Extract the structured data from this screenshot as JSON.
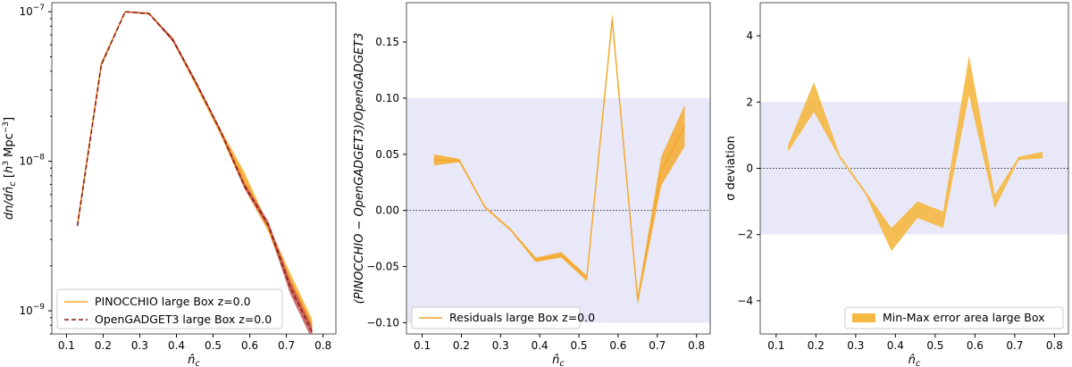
{
  "chart_data": [
    {
      "type": "line",
      "xlabel": "n̂_c",
      "ylabel": "dn/dn̂_c [h³ Mpc⁻³]",
      "yscale": "log",
      "xlim": [
        0.06,
        0.835
      ],
      "ylim": [
        7e-10,
        1.15e-07
      ],
      "xticks": [
        0.1,
        0.2,
        0.3,
        0.4,
        0.5,
        0.6,
        0.7,
        0.8
      ],
      "xticklabels": [
        "0.1",
        "0.2",
        "0.3",
        "0.4",
        "0.5",
        "0.6",
        "0.7",
        "0.8"
      ],
      "yticks": [
        1e-09,
        1e-08,
        1e-07
      ],
      "legend_loc": "lower left",
      "grid": false,
      "x": [
        0.13,
        0.195,
        0.26,
        0.325,
        0.39,
        0.455,
        0.52,
        0.585,
        0.65,
        0.71,
        0.77
      ],
      "series": [
        {
          "name": "PINOCCHIO large Box z=0.0",
          "color": "#f5a623",
          "style": "solid",
          "values": [
            3.8e-09,
            4.5e-08,
            1e-07,
            9.8e-08,
            6.5e-08,
            3.3e-08,
            1.6e-08,
            7.5e-09,
            3.6e-09,
            1.6e-09,
            8e-10
          ],
          "band_low": [
            3.7e-09,
            4.4e-08,
            9.9e-08,
            9.7e-08,
            6.3e-08,
            3.1e-08,
            1.5e-08,
            6.6e-09,
            3.4e-09,
            1.4e-09,
            7.2e-10
          ],
          "band_high": [
            3.9e-09,
            4.6e-08,
            1.01e-07,
            9.9e-08,
            6.7e-08,
            3.4e-08,
            1.65e-08,
            8.5e-09,
            3.8e-09,
            1.8e-09,
            8.8e-10
          ],
          "band_color": "#f5a623"
        },
        {
          "name": "OpenGADGET3 large Box z=0.0",
          "color": "#8b1a1a",
          "style": "dashed",
          "values": [
            3.7e-09,
            4.4e-08,
            1e-07,
            9.7e-08,
            6.5e-08,
            3.3e-08,
            1.6e-08,
            6.9e-09,
            3.8e-09,
            1.45e-09,
            7.2e-10
          ],
          "band_low": [
            3.6e-09,
            4.3e-08,
            9.9e-08,
            9.6e-08,
            6.3e-08,
            3.2e-08,
            1.55e-08,
            6.6e-09,
            3.6e-09,
            1.3e-09,
            6.4e-10
          ],
          "band_high": [
            3.8e-09,
            4.5e-08,
            1.01e-07,
            9.8e-08,
            6.7e-08,
            3.4e-08,
            1.65e-08,
            7.2e-09,
            4e-09,
            1.6e-09,
            7.9e-10
          ],
          "band_color": "#c0504d"
        }
      ]
    },
    {
      "type": "area",
      "xlabel": "n̂_c",
      "ylabel": "(PINOCCHIO − OpenGADGET3)/OpenGADGET3",
      "xlim": [
        0.06,
        0.835
      ],
      "ylim": [
        -0.11,
        0.185
      ],
      "xticks": [
        0.1,
        0.2,
        0.3,
        0.4,
        0.5,
        0.6,
        0.7,
        0.8
      ],
      "xticklabels": [
        "0.1",
        "0.2",
        "0.3",
        "0.4",
        "0.5",
        "0.6",
        "0.7",
        "0.8"
      ],
      "yticks": [
        -0.1,
        -0.05,
        0.0,
        0.05,
        0.1,
        0.15
      ],
      "yticklabels": [
        "−0.10",
        "−0.05",
        "0.00",
        "0.05",
        "0.10",
        "0.15"
      ],
      "shaded_region": [
        -0.1,
        0.1
      ],
      "shaded_color": "#e8e8f8",
      "reference_line": 0,
      "legend_loc": "lower left",
      "grid": false,
      "x": [
        0.13,
        0.195,
        0.26,
        0.325,
        0.39,
        0.455,
        0.52,
        0.585,
        0.65,
        0.71,
        0.77
      ],
      "series": [
        {
          "name": "Residuals large Box z=0.0",
          "color": "#f5a623",
          "values": [
            0.045,
            0.044,
            0.003,
            -0.017,
            -0.044,
            -0.04,
            -0.06,
            0.17,
            -0.08,
            0.035,
            0.075
          ],
          "band_low": [
            0.04,
            0.043,
            0.002,
            -0.018,
            -0.046,
            -0.042,
            -0.063,
            0.166,
            -0.084,
            0.022,
            0.057
          ],
          "band_high": [
            0.05,
            0.046,
            0.004,
            -0.016,
            -0.042,
            -0.037,
            -0.058,
            0.176,
            -0.076,
            0.048,
            0.094
          ]
        }
      ]
    },
    {
      "type": "area",
      "xlabel": "n̂_c",
      "ylabel": "σ deviation",
      "xlim": [
        0.06,
        0.835
      ],
      "ylim": [
        -5,
        5
      ],
      "xticks": [
        0.1,
        0.2,
        0.3,
        0.4,
        0.5,
        0.6,
        0.7,
        0.8
      ],
      "xticklabels": [
        "0.1",
        "0.2",
        "0.3",
        "0.4",
        "0.5",
        "0.6",
        "0.7",
        "0.8"
      ],
      "yticks": [
        -4,
        -2,
        0,
        2,
        4
      ],
      "yticklabels": [
        "−4",
        "−2",
        "0",
        "2",
        "4"
      ],
      "shaded_region": [
        -2,
        2
      ],
      "shaded_color": "#e8e8f8",
      "reference_line": 0,
      "legend_loc": "lower right",
      "grid": false,
      "x": [
        0.13,
        0.195,
        0.26,
        0.325,
        0.39,
        0.455,
        0.52,
        0.585,
        0.65,
        0.71,
        0.77
      ],
      "series": [
        {
          "name": "Min-Max error area large Box",
          "color": "#f5b841",
          "band_low": [
            0.5,
            1.7,
            0.3,
            -0.8,
            -2.5,
            -1.5,
            -1.8,
            2.2,
            -1.2,
            0.25,
            0.3
          ],
          "band_high": [
            0.7,
            2.6,
            0.4,
            -0.7,
            -1.8,
            -1.0,
            -1.3,
            3.4,
            -0.8,
            0.35,
            0.5
          ]
        }
      ]
    }
  ]
}
